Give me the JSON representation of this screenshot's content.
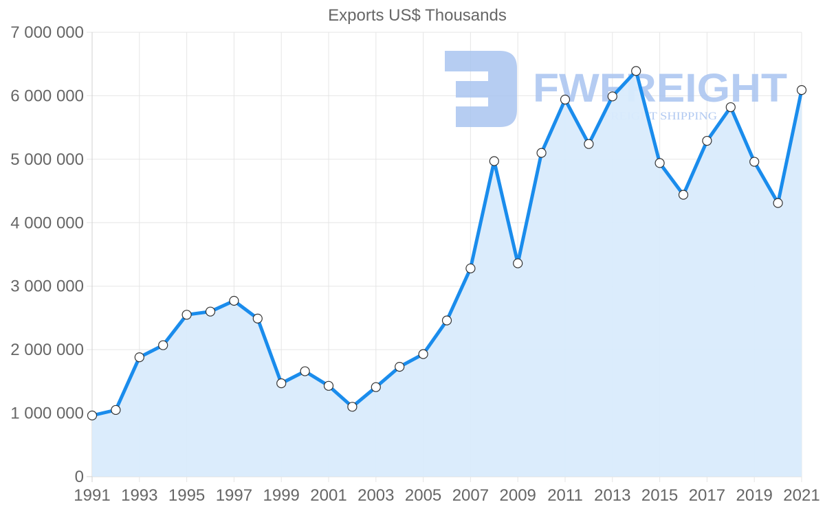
{
  "chart_data": {
    "type": "area",
    "title": "Exports US$ Thousands",
    "xlabel": "",
    "ylabel": "",
    "categories": [
      1991,
      1992,
      1993,
      1994,
      1995,
      1996,
      1997,
      1998,
      1999,
      2000,
      2001,
      2002,
      2003,
      2004,
      2005,
      2006,
      2007,
      2008,
      2009,
      2010,
      2011,
      2012,
      2013,
      2014,
      2015,
      2016,
      2017,
      2018,
      2019,
      2020,
      2021
    ],
    "series": [
      {
        "name": "Exports US$ Thousands",
        "values": [
          963000,
          1050000,
          1880000,
          2070000,
          2550000,
          2600000,
          2770000,
          2490000,
          1470000,
          1660000,
          1430000,
          1100000,
          1410000,
          1730000,
          1930000,
          2460000,
          3280000,
          4970000,
          3360000,
          5100000,
          5940000,
          5240000,
          5990000,
          6390000,
          4940000,
          4440000,
          5290000,
          5820000,
          4960000,
          4310000,
          6090000
        ],
        "line_color": "#1a8cec",
        "fill_color": "#d9ebfc",
        "marker_fill": "#ffffff",
        "marker_stroke": "#333333"
      }
    ],
    "x_tick_labels": [
      "1991",
      "1993",
      "1995",
      "1997",
      "1999",
      "2001",
      "2003",
      "2005",
      "2007",
      "2009",
      "2011",
      "2013",
      "2015",
      "2017",
      "2019",
      "2021"
    ],
    "y_tick_labels": [
      "0",
      "1 000 000",
      "2 000 000",
      "3 000 000",
      "4 000 000",
      "5 000 000",
      "6 000 000",
      "7 000 000"
    ],
    "ylim": [
      0,
      7000000
    ],
    "grid": true,
    "legend": "none"
  },
  "watermark": {
    "brand": "FWFREIGHT",
    "tagline": "FREIGHT SHIPPING"
  }
}
